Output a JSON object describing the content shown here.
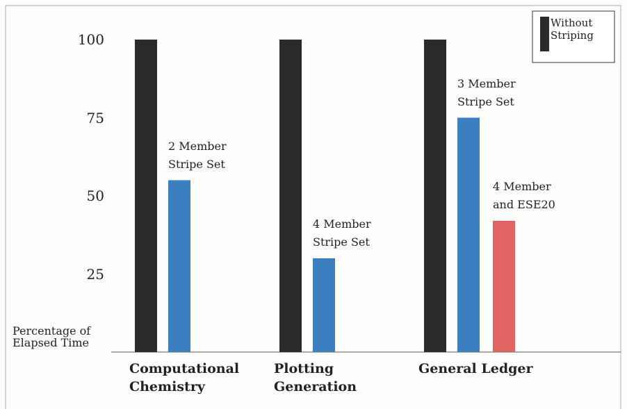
{
  "chart_data": {
    "type": "bar",
    "categories": [
      "Computational Chemistry",
      "Plotting Generation",
      "General Ledger"
    ],
    "series": [
      {
        "name": "Without Striping",
        "color": "#2b2b2d",
        "values": [
          100,
          100,
          100
        ]
      },
      {
        "name": "2 Member Stripe Set",
        "color": "#3b7fc0",
        "values": [
          55,
          null,
          null
        ]
      },
      {
        "name": "4 Member Stripe Set",
        "color": "#3b7fc0",
        "values": [
          null,
          30,
          null
        ]
      },
      {
        "name": "3 Member Stripe Set",
        "color": "#3b7fc0",
        "values": [
          null,
          null,
          75
        ]
      },
      {
        "name": "4 Member and ESE20",
        "color": "#e06460",
        "values": [
          null,
          null,
          42
        ]
      }
    ],
    "ylabel": "Percentage of Elapsed Time",
    "ylim": [
      0,
      110
    ],
    "yticks": [
      25,
      50,
      75,
      100
    ],
    "legend": "upper right",
    "grid": false
  }
}
